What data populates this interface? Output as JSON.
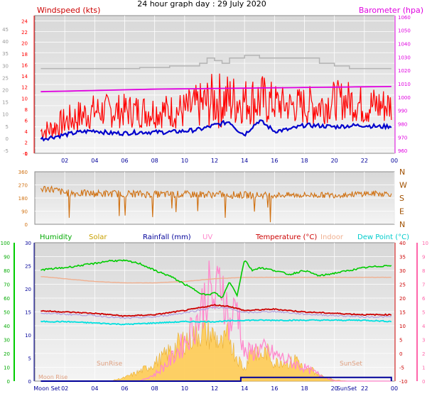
{
  "header": {
    "title": "24 hour graph day : 29 July 2020"
  },
  "colors": {
    "windspeed": "#ff0000",
    "windspeed_avg": "#0000cc",
    "gust_grey": "#b4b4b4",
    "barometer": "#e000e0",
    "direction": "#d07010",
    "humidity": "#00cc00",
    "solar": "#c8a000",
    "solar_fill": "#ffcc55",
    "rainfall": "#000099",
    "uv": "#ff88cc",
    "temperature": "#cc0000",
    "indoor": "#f0b090",
    "dewpoint": "#00e0e0",
    "plot_bg": "#e8e8e8"
  },
  "chart_data": [
    {
      "type": "line",
      "name": "wind-barometer",
      "title": "24 hour graph day : 29 July 2020",
      "ylabel": "Windspeed (kts)",
      "y2label": "Barometer (hpa)",
      "x_ticks": [
        "02",
        "04",
        "06",
        "08",
        "10",
        "12",
        "14",
        "16",
        "18",
        "20",
        "22",
        "00"
      ],
      "xlim": [
        0,
        24
      ],
      "ylim": [
        -1,
        25
      ],
      "y_ticks": [
        "24",
        "22",
        "20",
        "18",
        "16",
        "14",
        "12",
        "10",
        "8",
        "6",
        "4",
        "2",
        "0",
        "-1"
      ],
      "outer_ticks": [
        "45",
        "40",
        "35",
        "30",
        "25",
        "20",
        "15",
        "10",
        "5",
        "0",
        "-5"
      ],
      "y2lim": [
        958,
        1061
      ],
      "y2_ticks": [
        "1060",
        "1050",
        "1040",
        "1030",
        "1020",
        "1010",
        "1000",
        "990",
        "980",
        "970",
        "960"
      ],
      "series": [
        {
          "name": "Windspeed (kts)",
          "type": "line_noisy",
          "x": [
            0,
            1,
            2,
            3,
            4,
            5,
            6,
            7,
            8,
            9,
            10,
            11,
            12,
            13,
            14,
            15,
            16,
            17,
            18,
            19,
            20,
            21,
            22,
            23,
            24
          ],
          "y": [
            3,
            3.5,
            5,
            6,
            7,
            7,
            7,
            7,
            7,
            7,
            7,
            8,
            9,
            9,
            9,
            9,
            8.5,
            8,
            8,
            8,
            9,
            9,
            8,
            8,
            8
          ],
          "amp": [
            1.5,
            2,
            2.5,
            3,
            3,
            3,
            3,
            3,
            3,
            3,
            3.5,
            4,
            5,
            5,
            4,
            5,
            3.5,
            3,
            3.5,
            3.5,
            3.5,
            3.5,
            3.5,
            3.5,
            3
          ]
        },
        {
          "name": "Windspeed average",
          "type": "line",
          "x": [
            0,
            1,
            2,
            3,
            4,
            5,
            6,
            7,
            8,
            9,
            10,
            11,
            12,
            13,
            13.5,
            14,
            14.5,
            15,
            16,
            17,
            18,
            19,
            20,
            21,
            22,
            23,
            24
          ],
          "y": [
            1.5,
            2,
            2.5,
            3,
            3.3,
            2.8,
            2.8,
            3,
            3,
            3,
            3.2,
            3.5,
            4.3,
            5,
            3.5,
            2.5,
            4,
            5.2,
            3.2,
            3.5,
            4.3,
            4.2,
            4,
            4.2,
            4.3,
            4,
            4.2
          ]
        },
        {
          "name": "Gust",
          "type": "step",
          "x": [
            0,
            4,
            7,
            9,
            10,
            11,
            11.5,
            12,
            12.5,
            13,
            14,
            15,
            16,
            17,
            18,
            19,
            20,
            21,
            22,
            23,
            24
          ],
          "y": [
            15,
            15,
            15.2,
            15.5,
            15.5,
            16,
            17,
            16.5,
            16,
            17,
            17.5,
            17,
            17,
            17,
            17,
            16,
            15.5,
            15,
            15,
            15,
            15
          ]
        },
        {
          "name": "Barometer (hpa)",
          "type": "line",
          "axis": "y2",
          "x": [
            0,
            4,
            8,
            12,
            16,
            20,
            24
          ],
          "y": [
            1004,
            1005,
            1006,
            1006.5,
            1007,
            1007.5,
            1008
          ]
        }
      ]
    },
    {
      "type": "line",
      "name": "wind-direction",
      "ylim": [
        0,
        360
      ],
      "y_ticks": [
        "360",
        "270",
        "180",
        "90",
        "0"
      ],
      "compass": [
        "N",
        "W",
        "S",
        "E",
        "N"
      ],
      "series": [
        {
          "name": "Wind direction",
          "type": "line_noisy",
          "x": [
            0,
            1,
            2,
            4,
            6,
            8,
            10,
            12,
            14,
            16,
            18,
            20,
            22,
            24
          ],
          "y": [
            240,
            245,
            215,
            210,
            210,
            205,
            205,
            205,
            200,
            200,
            200,
            200,
            210,
            210
          ],
          "amp": [
            30,
            25,
            25,
            25,
            25,
            25,
            25,
            25,
            25,
            20,
            20,
            20,
            20,
            20
          ]
        }
      ]
    },
    {
      "type": "line",
      "name": "temperature-humidity-solar",
      "xlim": [
        0,
        24
      ],
      "x_ticks": [
        "02",
        "04",
        "06",
        "08",
        "10",
        "12",
        "14",
        "16",
        "18",
        "20",
        "22",
        "00"
      ],
      "legend": [
        "Humidity",
        "Solar",
        "Rainfall (mm)",
        "UV",
        "Temperature (°C)",
        "Indoor",
        "Dew Point (°C)"
      ],
      "annotations": [
        "Moon Set",
        "Moon Rise",
        "SunRise",
        "SunSet",
        "SunSet"
      ],
      "humidity_ticks": [
        "100",
        "90",
        "80",
        "70",
        "60",
        "50",
        "40",
        "30",
        "20",
        "10",
        "0"
      ],
      "rain_ticks": [
        "30",
        "25",
        "20",
        "15",
        "10",
        "5",
        "0"
      ],
      "temp_ticks": [
        "40",
        "35",
        "30",
        "25",
        "20",
        "15",
        "10",
        "5",
        "0",
        "-5",
        "-10"
      ],
      "uv_ticks": [
        "10",
        "9",
        "8",
        "7",
        "6",
        "5",
        "4",
        "3",
        "2",
        "1",
        "0"
      ],
      "ylim": [
        -10,
        40
      ],
      "series": [
        {
          "name": "Humidity",
          "type": "line",
          "axis": "humidity",
          "x": [
            0,
            2,
            4,
            5,
            6,
            7,
            8,
            9,
            10,
            11,
            11.5,
            12,
            12.5,
            13,
            13.5,
            14,
            14.5,
            15,
            16,
            17,
            18,
            19,
            20,
            21,
            22,
            23,
            24
          ],
          "y": [
            80,
            82,
            85,
            87,
            87,
            85,
            80,
            76,
            70,
            64,
            62,
            64,
            60,
            72,
            62,
            88,
            80,
            82,
            80,
            77,
            80,
            76,
            78,
            80,
            82,
            83,
            84
          ]
        },
        {
          "name": "Temperature (°C)",
          "type": "line",
          "x": [
            0,
            2,
            4,
            6,
            8,
            10,
            11,
            12,
            13,
            14,
            16,
            18,
            20,
            22,
            24
          ],
          "y": [
            15.5,
            15,
            14.5,
            13.5,
            14,
            15.5,
            16.5,
            17.5,
            17,
            15.5,
            16,
            15,
            14.5,
            14,
            14
          ]
        },
        {
          "name": "Indoor",
          "type": "line",
          "x": [
            0,
            2,
            4,
            6,
            8,
            10,
            12,
            14,
            16,
            18,
            20,
            22,
            24
          ],
          "y": [
            28,
            27,
            26,
            25.5,
            25.5,
            26,
            27,
            27.5,
            27.5,
            27.5,
            27.5,
            27.5,
            27.5
          ]
        },
        {
          "name": "Dew Point (°C)",
          "type": "line",
          "x": [
            0,
            2,
            4,
            6,
            8,
            10,
            12,
            14,
            16,
            18,
            20,
            22,
            24
          ],
          "y": [
            11.5,
            11.5,
            11,
            10.5,
            11,
            11.5,
            11.5,
            12,
            12,
            12,
            12,
            12,
            11.5
          ]
        },
        {
          "name": "Solar",
          "type": "area",
          "axis": "humidity",
          "x": [
            0,
            5,
            6,
            7,
            8,
            9,
            10,
            11,
            12,
            12.5,
            13,
            13.3,
            14,
            14.5,
            15,
            15.5,
            16,
            16.5,
            17,
            17.5,
            18,
            18.5,
            19,
            20,
            21,
            24
          ],
          "y": [
            0,
            0,
            3,
            8,
            15,
            25,
            35,
            42,
            38,
            30,
            40,
            25,
            10,
            30,
            20,
            25,
            15,
            18,
            15,
            20,
            8,
            10,
            5,
            1,
            0,
            0
          ]
        },
        {
          "name": "UV",
          "type": "line",
          "axis": "uv",
          "x": [
            0,
            7,
            8,
            9,
            10,
            11,
            11.5,
            12,
            12.5,
            13,
            13.5,
            14,
            15,
            16,
            17,
            18,
            19,
            20,
            24
          ],
          "y": [
            0,
            0,
            0.5,
            1.5,
            3,
            5,
            7,
            6,
            8,
            4,
            6,
            2,
            2.5,
            2,
            1.5,
            1,
            0.5,
            0,
            0
          ]
        },
        {
          "name": "Rainfall (mm)",
          "type": "step",
          "axis": "rain",
          "x": [
            0,
            13.7,
            13.8,
            24
          ],
          "y": [
            0,
            0,
            1,
            1
          ]
        }
      ]
    }
  ]
}
